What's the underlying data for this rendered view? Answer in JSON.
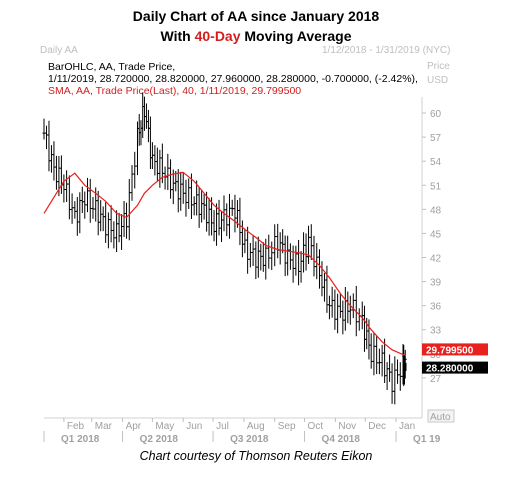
{
  "header": {
    "title_line1": "Daily Chart of AA since January 2018",
    "title_line2_prefix": "With ",
    "title_line2_highlight": "40-Day",
    "title_line2_suffix": " Moving Average",
    "panel_name": "Daily AA",
    "date_range": "1/12/2018 - 1/31/2019 (NYC)",
    "price_label": "Price",
    "currency_label": "USD"
  },
  "legend": {
    "line1": "BarOHLC, AA, Trade Price,",
    "line2": "1/11/2019, 28.720000, 28.820000, 27.960000, 28.280000, -0.700000, (-2.42%),",
    "line3": "SMA, AA, Trade Price(Last), 40, 1/11/2019, 29.799500"
  },
  "caption": "Chart courtesy of Thomson Reuters Eikon",
  "colors": {
    "bars": "#000000",
    "sma": "#e8201e",
    "sma_badge": "#e8201e",
    "close_badge": "#000000",
    "grid_text": "#a0a0a0"
  },
  "chart_data": {
    "type": "line",
    "title": "Daily Chart of AA since January 2018",
    "ylabel": "Price USD",
    "ylim": [
      22,
      62
    ],
    "y_ticks": [
      27,
      30,
      33,
      36,
      39,
      42,
      45,
      48,
      51,
      54,
      57,
      60
    ],
    "y_tick_labels": [
      "27",
      "30",
      "33",
      "36",
      "39",
      "42",
      "45",
      "48",
      "51",
      "54",
      "57",
      "60"
    ],
    "month_labels": [
      "Feb",
      "Mar",
      "Apr",
      "May",
      "Jun",
      "Jul",
      "Aug",
      "Sep",
      "Oct",
      "Nov",
      "Dec",
      "Jan"
    ],
    "quarter_labels": [
      "Q1 2018",
      "Q2 2018",
      "Q3 2018",
      "Q4 2018",
      "Q1 19"
    ],
    "auto_label": "Auto",
    "badges": {
      "sma_value": "29.799500",
      "close_value": "28.280000"
    },
    "series": [
      {
        "name": "BarOHLC, AA, Trade Price",
        "type": "ohlc",
        "x": [
          "2018-01-12",
          "2018-01-22",
          "2018-02-01",
          "2018-02-12",
          "2018-02-22",
          "2018-03-05",
          "2018-03-15",
          "2018-03-26",
          "2018-04-05",
          "2018-04-16",
          "2018-04-23",
          "2018-05-01",
          "2018-05-11",
          "2018-05-22",
          "2018-06-01",
          "2018-06-12",
          "2018-06-22",
          "2018-07-02",
          "2018-07-12",
          "2018-07-23",
          "2018-08-02",
          "2018-08-13",
          "2018-08-23",
          "2018-09-04",
          "2018-09-14",
          "2018-09-25",
          "2018-10-05",
          "2018-10-16",
          "2018-10-26",
          "2018-11-06",
          "2018-11-16",
          "2018-11-28",
          "2018-12-07",
          "2018-12-18",
          "2018-12-28",
          "2019-01-08",
          "2019-01-11"
        ],
        "values": [
          57.5,
          53,
          51,
          47,
          49.5,
          48,
          46,
          45,
          47,
          57,
          60.5,
          54,
          53,
          51,
          50,
          49,
          48,
          46,
          47,
          48,
          43,
          42,
          42,
          44,
          42,
          41,
          44,
          40,
          36,
          35,
          36,
          34,
          30,
          29,
          26.5,
          28.5,
          28.28
        ]
      },
      {
        "name": "SMA, AA, Trade Price(Last), 40",
        "type": "line",
        "x": [
          "2018-01-12",
          "2018-01-22",
          "2018-02-01",
          "2018-02-12",
          "2018-02-22",
          "2018-03-05",
          "2018-03-15",
          "2018-03-26",
          "2018-04-05",
          "2018-04-16",
          "2018-04-23",
          "2018-05-01",
          "2018-05-11",
          "2018-05-22",
          "2018-06-01",
          "2018-06-12",
          "2018-06-22",
          "2018-07-02",
          "2018-07-12",
          "2018-07-23",
          "2018-08-02",
          "2018-08-13",
          "2018-08-23",
          "2018-09-04",
          "2018-09-14",
          "2018-09-25",
          "2018-10-05",
          "2018-10-16",
          "2018-10-26",
          "2018-11-06",
          "2018-11-16",
          "2018-11-28",
          "2018-12-07",
          "2018-12-18",
          "2018-12-28",
          "2019-01-08",
          "2019-01-11"
        ],
        "values": [
          47.5,
          49.5,
          51.5,
          52.5,
          51,
          50,
          49,
          47.5,
          47,
          48.5,
          50,
          51,
          52,
          52.4,
          52.6,
          51.5,
          50,
          48.5,
          47.5,
          46.5,
          45.5,
          44.5,
          43.5,
          43,
          42.8,
          42.6,
          42.3,
          41,
          39.5,
          37.5,
          36,
          34.5,
          33,
          31.5,
          30.5,
          29.9,
          29.8
        ]
      }
    ]
  }
}
